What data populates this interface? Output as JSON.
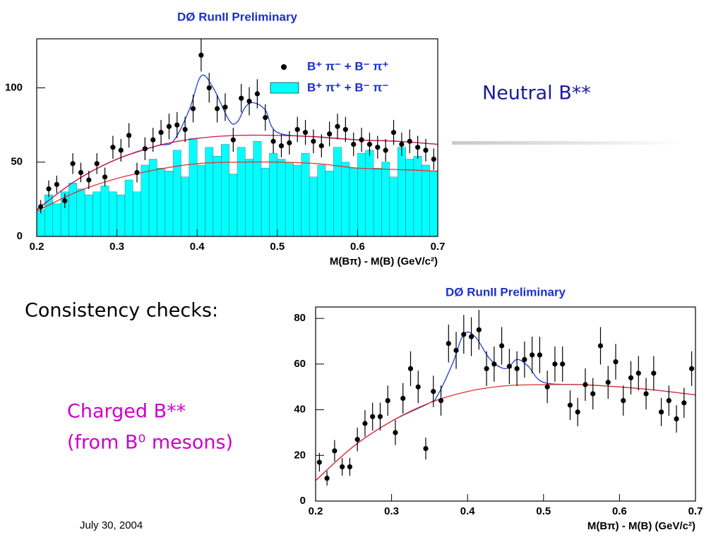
{
  "slide": {
    "heading": "Neutral B**",
    "subheading": "Consistency checks:",
    "label_lines": [
      "Charged B**",
      "(from B⁰ mesons)"
    ],
    "footer": "July 30, 2004"
  },
  "chart_data": [
    {
      "type": "scatter",
      "title": "DØ RunII  Preliminary",
      "x_label": "M(Bπ) - M(B) (GeV/c²)",
      "xlim": [
        0.2,
        0.7
      ],
      "ylim": [
        0,
        133
      ],
      "xticks": [
        0.2,
        0.3,
        0.4,
        0.5,
        0.6,
        0.7
      ],
      "yticks": [
        0,
        50,
        100
      ],
      "legend": "top-right",
      "x": [
        0.205,
        0.215,
        0.225,
        0.235,
        0.245,
        0.255,
        0.265,
        0.275,
        0.285,
        0.295,
        0.305,
        0.315,
        0.325,
        0.335,
        0.345,
        0.355,
        0.365,
        0.375,
        0.385,
        0.395,
        0.405,
        0.415,
        0.425,
        0.435,
        0.445,
        0.455,
        0.465,
        0.475,
        0.485,
        0.495,
        0.505,
        0.515,
        0.525,
        0.535,
        0.545,
        0.555,
        0.565,
        0.575,
        0.585,
        0.595,
        0.605,
        0.615,
        0.625,
        0.635,
        0.645,
        0.655,
        0.665,
        0.675,
        0.685,
        0.695
      ],
      "series": [
        {
          "name": "B⁺ π⁻ + B⁻ π⁺",
          "color": "#000000",
          "values": [
            20,
            32,
            35,
            24,
            49,
            43,
            38,
            49,
            40,
            60,
            58,
            68,
            43,
            59,
            65,
            70,
            74,
            75,
            72,
            86,
            122,
            100,
            86,
            87,
            65,
            93,
            91,
            96,
            80,
            64,
            61,
            63,
            72,
            70,
            64,
            61,
            69,
            74,
            72,
            62,
            65,
            62,
            60,
            58,
            70,
            62,
            64,
            60,
            58,
            52
          ],
          "errors": [
            4.5,
            5.7,
            5.9,
            4.9,
            7,
            6.6,
            6.2,
            7,
            6.3,
            7.7,
            7.6,
            8.2,
            6.6,
            7.7,
            8.1,
            8.4,
            8.6,
            8.7,
            8.5,
            9.3,
            11,
            10,
            9.3,
            9.3,
            8.1,
            9.6,
            9.5,
            9.8,
            8.9,
            8,
            7.8,
            7.9,
            8.5,
            8.4,
            8,
            7.8,
            8.3,
            8.6,
            8.5,
            7.9,
            8.1,
            7.9,
            7.7,
            7.6,
            8.4,
            7.9,
            8,
            7.7,
            7.6,
            7.2
          ]
        }
      ],
      "histogram": {
        "name": "B⁺ π⁺ + B⁻ π⁻",
        "color": "#00ffff",
        "bins": [
          0.2,
          0.21,
          0.22,
          0.23,
          0.24,
          0.25,
          0.26,
          0.27,
          0.28,
          0.29,
          0.3,
          0.31,
          0.32,
          0.33,
          0.34,
          0.35,
          0.36,
          0.37,
          0.38,
          0.39,
          0.4,
          0.41,
          0.42,
          0.43,
          0.44,
          0.45,
          0.46,
          0.47,
          0.48,
          0.49,
          0.5,
          0.51,
          0.52,
          0.53,
          0.54,
          0.55,
          0.56,
          0.57,
          0.58,
          0.59,
          0.6,
          0.61,
          0.62,
          0.63,
          0.64,
          0.65,
          0.66,
          0.67,
          0.68,
          0.69,
          0.7
        ],
        "counts": [
          18,
          28,
          22,
          30,
          36,
          32,
          28,
          30,
          34,
          30,
          28,
          38,
          30,
          48,
          52,
          46,
          44,
          58,
          40,
          66,
          48,
          60,
          54,
          62,
          42,
          60,
          52,
          64,
          46,
          56,
          52,
          50,
          48,
          56,
          40,
          48,
          44,
          60,
          50,
          46,
          56,
          58,
          46,
          50,
          40,
          60,
          52,
          54,
          48,
          44
        ]
      },
      "curves": [
        {
          "color": "#2040d0",
          "x": [
            0.2,
            0.25,
            0.3,
            0.35,
            0.37,
            0.39,
            0.405,
            0.42,
            0.44,
            0.45,
            0.46,
            0.47,
            0.485,
            0.5,
            0.55,
            0.6,
            0.65,
            0.7
          ],
          "values": [
            18,
            38,
            52,
            61,
            64,
            85,
            108,
            100,
            78,
            77,
            87,
            90,
            85,
            70,
            67,
            65,
            64,
            62
          ]
        },
        {
          "color": "#d0104a",
          "x": [
            0.2,
            0.25,
            0.3,
            0.35,
            0.4,
            0.45,
            0.5,
            0.55,
            0.6,
            0.65,
            0.7
          ],
          "values": [
            18,
            38,
            52,
            61,
            66,
            68,
            68,
            67,
            65,
            64,
            62
          ]
        },
        {
          "color": "#e03030",
          "x": [
            0.2,
            0.25,
            0.3,
            0.35,
            0.4,
            0.45,
            0.5,
            0.55,
            0.6,
            0.65,
            0.7
          ],
          "values": [
            17,
            30,
            39,
            45,
            49,
            50,
            50,
            49,
            46,
            45,
            44
          ]
        }
      ]
    },
    {
      "type": "scatter",
      "title": "DØ RunII  Preliminary",
      "x_label": "M(Bπ) - M(B) (GeV/c²)",
      "xlim": [
        0.2,
        0.7
      ],
      "ylim": [
        0,
        85
      ],
      "xticks": [
        0.2,
        0.3,
        0.4,
        0.5,
        0.6,
        0.7
      ],
      "yticks": [
        0,
        20,
        40,
        60,
        80
      ],
      "x": [
        0.205,
        0.215,
        0.225,
        0.235,
        0.245,
        0.255,
        0.265,
        0.275,
        0.285,
        0.295,
        0.305,
        0.315,
        0.325,
        0.335,
        0.345,
        0.355,
        0.365,
        0.375,
        0.385,
        0.395,
        0.405,
        0.415,
        0.425,
        0.435,
        0.445,
        0.455,
        0.465,
        0.475,
        0.485,
        0.495,
        0.505,
        0.515,
        0.525,
        0.535,
        0.545,
        0.555,
        0.565,
        0.575,
        0.585,
        0.595,
        0.605,
        0.615,
        0.625,
        0.635,
        0.645,
        0.655,
        0.665,
        0.675,
        0.685,
        0.695
      ],
      "series": [
        {
          "color": "#000000",
          "values": [
            17,
            10,
            22,
            15,
            15,
            27,
            34,
            37,
            37,
            44,
            30,
            45,
            58,
            50,
            23,
            48,
            44,
            69,
            66,
            73,
            72,
            75,
            58,
            60,
            68,
            59,
            58,
            62,
            64,
            64,
            50,
            60,
            60,
            42,
            39,
            51,
            47,
            68,
            52,
            61,
            44,
            54,
            56,
            47,
            56,
            39,
            44,
            36,
            43,
            58
          ],
          "errors": [
            4.1,
            3.2,
            4.7,
            3.9,
            3.9,
            5.2,
            5.8,
            6.1,
            6.1,
            6.6,
            5.5,
            6.7,
            7.6,
            7.1,
            4.8,
            6.9,
            6.6,
            8.3,
            8.1,
            8.5,
            8.5,
            8.7,
            7.6,
            7.7,
            8.2,
            7.7,
            7.6,
            7.9,
            8,
            8,
            7.1,
            7.7,
            7.7,
            6.5,
            6.2,
            7.1,
            6.9,
            8.2,
            7.2,
            7.8,
            6.6,
            7.3,
            7.5,
            6.9,
            7.5,
            6.2,
            6.6,
            6,
            6.6,
            7.6
          ]
        }
      ],
      "curves": [
        {
          "color": "#2040d0",
          "x": [
            0.2,
            0.25,
            0.3,
            0.35,
            0.36,
            0.38,
            0.395,
            0.41,
            0.43,
            0.45,
            0.465,
            0.48,
            0.5,
            0.55,
            0.6,
            0.65,
            0.7
          ],
          "values": [
            9,
            24,
            35,
            43,
            46,
            60,
            73,
            72,
            62,
            58,
            62,
            59,
            52,
            51,
            50,
            48.5,
            46.5
          ]
        },
        {
          "color": "#e03030",
          "x": [
            0.2,
            0.25,
            0.3,
            0.35,
            0.4,
            0.45,
            0.5,
            0.55,
            0.6,
            0.65,
            0.7
          ],
          "values": [
            9,
            24,
            35,
            43,
            48,
            50.5,
            51,
            51,
            50,
            48.5,
            46.5
          ]
        }
      ]
    }
  ]
}
